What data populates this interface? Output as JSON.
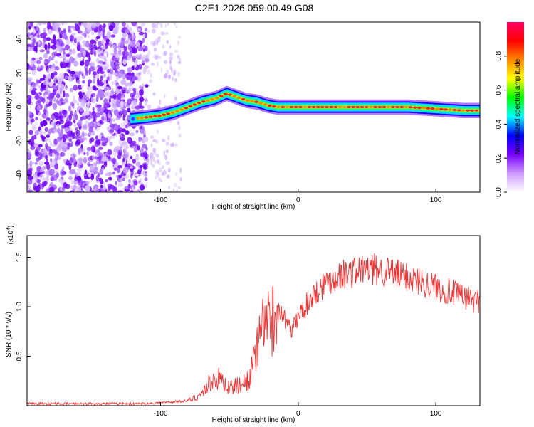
{
  "title": "C2E1.2026.059.00.49.G08",
  "chart_data": [
    {
      "type": "heatmap",
      "xlabel": "Height of straight line (km)",
      "ylabel": "Frequency (Hz)",
      "xlim": [
        -197,
        132
      ],
      "ylim": [
        -50,
        50
      ],
      "xticks": [
        -100,
        0,
        100
      ],
      "yticks": [
        -40,
        -20,
        0,
        20,
        40
      ],
      "colorbar": {
        "label": "Normalized spectral amplitude",
        "range": [
          0,
          1
        ],
        "ticks": [
          "0.0",
          "0.2",
          "0.4",
          "0.6",
          "0.8"
        ],
        "colors": [
          "#ffffff",
          "#cc99ff",
          "#7700ff",
          "#0000ff",
          "#00ffff",
          "#00ff00",
          "#ffff00",
          "#ff8800",
          "#ff0000",
          "#ff0066"
        ]
      },
      "ridge_frequency_hz": {
        "height_km": [
          -122,
          -110,
          -100,
          -90,
          -80,
          -70,
          -60,
          -52,
          -45,
          -38,
          -30,
          -22,
          -15,
          -5,
          5,
          20,
          40,
          60,
          80,
          100,
          120,
          132
        ],
        "freq_hz": [
          -7,
          -6,
          -5,
          -3,
          0,
          3,
          5,
          8,
          6,
          4,
          3,
          1,
          0,
          0,
          0,
          0,
          0,
          0,
          0,
          -1,
          -2,
          -2
        ]
      }
    },
    {
      "type": "line",
      "xlabel": "Height of straight line (km)",
      "ylabel": "SNR (10 * v/v)",
      "scale_label": "(x10",
      "scale_exp": "4",
      "xlim": [
        -197,
        132
      ],
      "ylim": [
        0,
        1.72
      ],
      "xticks": [
        -100,
        0,
        100
      ],
      "yticks": [
        "0.5",
        "1.0",
        "1.5"
      ],
      "series": [
        {
          "name": "SNR",
          "color": "#ee3333",
          "x": [
            -197,
            -150,
            -110,
            -100,
            -90,
            -80,
            -75,
            -70,
            -65,
            -60,
            -55,
            -50,
            -45,
            -40,
            -35,
            -30,
            -25,
            -20,
            -15,
            -10,
            -5,
            0,
            10,
            20,
            30,
            40,
            50,
            60,
            70,
            80,
            90,
            100,
            110,
            120,
            132
          ],
          "y": [
            0.02,
            0.02,
            0.02,
            0.03,
            0.04,
            0.05,
            0.08,
            0.12,
            0.22,
            0.28,
            0.25,
            0.18,
            0.2,
            0.22,
            0.3,
            0.55,
            0.8,
            0.85,
            0.95,
            0.9,
            0.75,
            0.9,
            1.1,
            1.25,
            1.32,
            1.35,
            1.38,
            1.37,
            1.33,
            1.3,
            1.25,
            1.2,
            1.15,
            1.1,
            1.05
          ]
        }
      ]
    }
  ]
}
